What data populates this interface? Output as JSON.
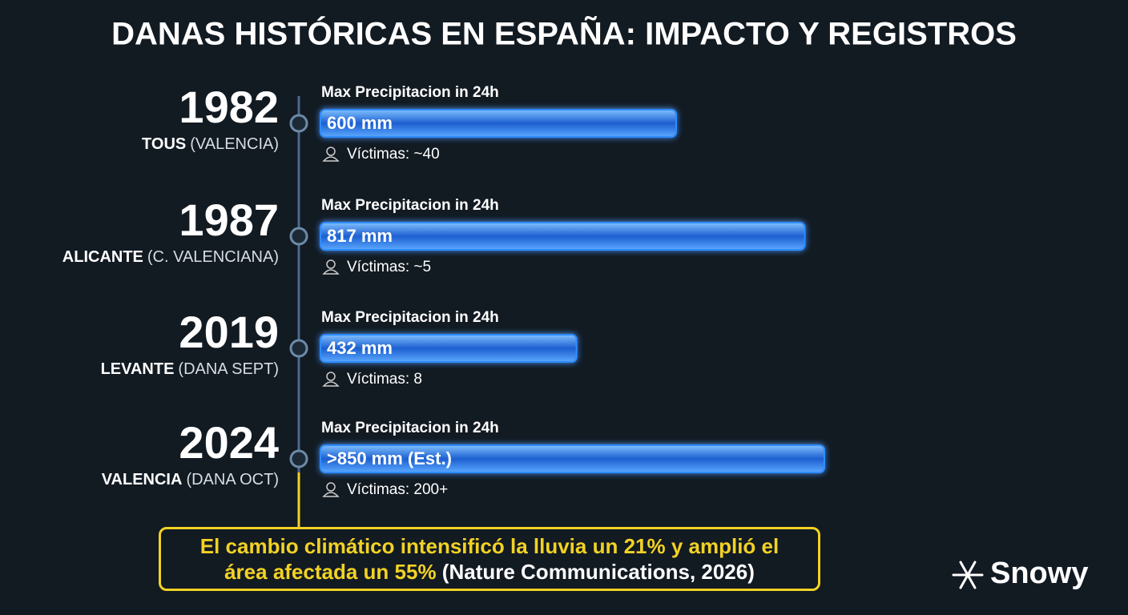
{
  "chart_data": {
    "type": "bar",
    "title": "DANAS HISTÓRICAS EN ESPAÑA: IMPACTO Y REGISTROS",
    "value_caption": "Max Precipitacion in 24h",
    "categories": [
      "1982",
      "1987",
      "2019",
      "2024"
    ],
    "places": [
      {
        "name": "TOUS",
        "detail": "(VALENCIA)"
      },
      {
        "name": "ALICANTE",
        "detail": "(C. VALENCIANA)"
      },
      {
        "name": "LEVANTE",
        "detail": "(DANA SEPT)"
      },
      {
        "name": "VALENCIA",
        "detail": "(DANA OCT)"
      }
    ],
    "values": [
      600,
      817,
      432,
      850
    ],
    "value_labels": [
      "600 mm",
      "817 mm",
      "432 mm",
      ">850 mm (Est.)"
    ],
    "victims": [
      "Víctimas: ~40",
      "Víctimas: ~5",
      "Víctimas: 8",
      "Víctimas: 200+"
    ],
    "color": "#2f8cff",
    "note": "El cambio climático intensificó la lluvia un 21% y amplió el área afectada un 55%",
    "source": "(Nature Communications, 2026)",
    "brand": "Snowy"
  }
}
